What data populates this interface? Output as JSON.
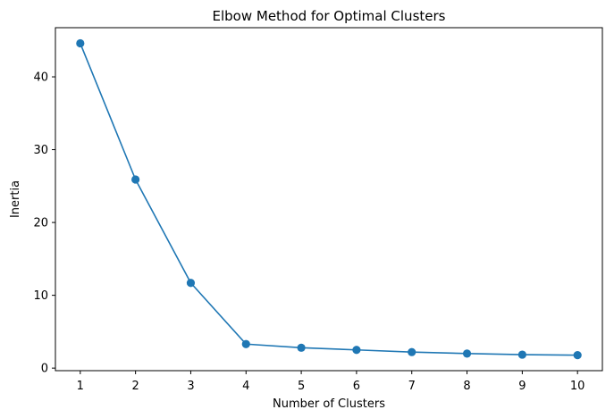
{
  "chart_data": {
    "type": "line",
    "title": "Elbow Method for Optimal Clusters",
    "xlabel": "Number of Clusters",
    "ylabel": "Inertia",
    "x": [
      1,
      2,
      3,
      4,
      5,
      6,
      7,
      8,
      9,
      10
    ],
    "series": [
      {
        "values": [
          44.6,
          25.9,
          11.7,
          3.3,
          2.8,
          2.5,
          2.2,
          2.0,
          1.85,
          1.78
        ],
        "color": "#1f77b4",
        "marker": "circle"
      }
    ],
    "xticks": [
      1,
      2,
      3,
      4,
      5,
      6,
      7,
      8,
      9,
      10
    ],
    "yticks": [
      0,
      10,
      20,
      30,
      40
    ],
    "xlim": [
      0.55,
      10.45
    ],
    "ylim": [
      -0.35,
      46.75
    ],
    "grid": false,
    "legend": "none"
  }
}
